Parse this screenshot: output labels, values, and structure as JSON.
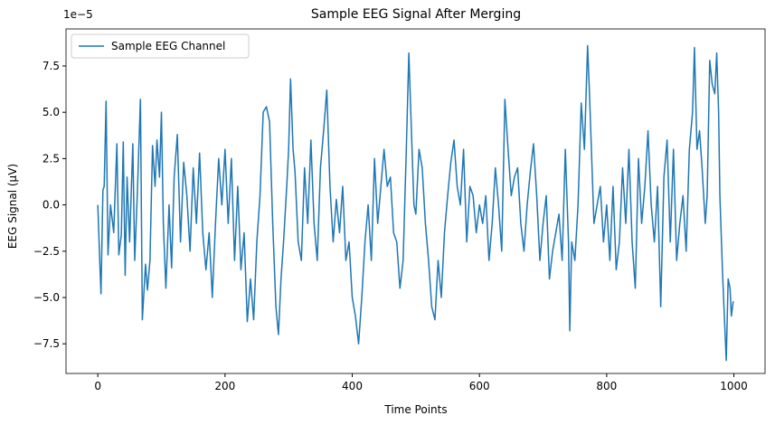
{
  "chart_data": {
    "type": "line",
    "title": "Sample EEG Signal After Merging",
    "x_label": "Time Points",
    "y_label": "EEG Signal (µV)",
    "y_offset_label": "1e−5",
    "xlim": [
      -50,
      1049
    ],
    "ylim": [
      -9.1,
      9.5
    ],
    "xticks": [
      0,
      200,
      400,
      600,
      800,
      1000
    ],
    "yticks": [
      {
        "value": -7.5,
        "label": "−7.5"
      },
      {
        "value": -5,
        "label": "−5.0"
      },
      {
        "value": -2.5,
        "label": "−2.5"
      },
      {
        "value": 0,
        "label": "0.0"
      },
      {
        "value": 2.5,
        "label": "2.5"
      },
      {
        "value": 5,
        "label": "5.0"
      },
      {
        "value": 7.5,
        "label": "7.5"
      }
    ],
    "grid": false,
    "legend": "upper-left",
    "x": [
      0,
      3,
      5,
      8,
      10,
      13,
      16,
      20,
      25,
      30,
      33,
      37,
      40,
      43,
      46,
      50,
      55,
      58,
      62,
      67,
      70,
      75,
      78,
      82,
      86,
      90,
      93,
      97,
      100,
      103,
      107,
      112,
      116,
      120,
      125,
      130,
      135,
      140,
      145,
      150,
      155,
      160,
      165,
      170,
      175,
      180,
      185,
      190,
      195,
      200,
      205,
      210,
      215,
      220,
      225,
      230,
      235,
      240,
      245,
      250,
      255,
      260,
      265,
      270,
      275,
      280,
      284,
      288,
      292,
      297,
      300,
      303,
      307,
      310,
      315,
      320,
      325,
      330,
      335,
      340,
      345,
      350,
      355,
      360,
      365,
      370,
      375,
      380,
      385,
      390,
      395,
      400,
      405,
      410,
      415,
      420,
      425,
      430,
      435,
      440,
      445,
      450,
      455,
      460,
      465,
      470,
      475,
      480,
      485,
      489,
      493,
      497,
      500,
      505,
      510,
      515,
      520,
      525,
      530,
      535,
      540,
      545,
      550,
      555,
      560,
      565,
      570,
      575,
      580,
      585,
      590,
      595,
      600,
      605,
      610,
      615,
      620,
      625,
      630,
      635,
      640,
      645,
      650,
      655,
      660,
      665,
      670,
      675,
      680,
      685,
      690,
      695,
      700,
      705,
      710,
      715,
      720,
      725,
      730,
      735,
      740,
      742,
      745,
      750,
      755,
      760,
      765,
      770,
      773,
      776,
      780,
      785,
      790,
      795,
      800,
      805,
      810,
      815,
      820,
      825,
      830,
      835,
      840,
      845,
      850,
      855,
      860,
      865,
      870,
      875,
      880,
      885,
      890,
      895,
      900,
      905,
      910,
      915,
      920,
      925,
      930,
      935,
      938,
      942,
      946,
      950,
      955,
      958,
      962,
      966,
      970,
      973,
      976,
      978,
      982,
      985,
      988,
      991,
      994,
      996,
      999
    ],
    "series": [
      {
        "name": "Sample EEG Channel",
        "color": "#1f77b4",
        "values": [
          0,
          -3,
          -4.8,
          0.8,
          1,
          5.6,
          -2.7,
          0,
          -1.5,
          3.3,
          -2.7,
          -1.6,
          3.4,
          -3.8,
          1.5,
          -2,
          3.3,
          -3,
          0.5,
          5.7,
          -6.2,
          -3.2,
          -4.6,
          -3,
          3.2,
          1,
          3.5,
          1.5,
          5.0,
          -1,
          -4.5,
          0,
          -3.4,
          1.5,
          3.8,
          -2,
          2.3,
          0.5,
          -2.5,
          2,
          -1,
          2.8,
          -1.5,
          -3.5,
          -1.5,
          -5,
          -1,
          2.5,
          0,
          3,
          -1,
          2.5,
          -3,
          1,
          -3.5,
          -1.5,
          -6.3,
          -4,
          -6.2,
          -2,
          0.5,
          5,
          5.3,
          4.5,
          -1,
          -5.5,
          -7.0,
          -4,
          -2,
          1,
          3,
          6.8,
          3,
          1.8,
          -2,
          -3,
          2,
          -1,
          3.5,
          -1,
          -3,
          2,
          4,
          6.2,
          1,
          -2,
          0.3,
          -1.5,
          1,
          -3,
          -2,
          -5,
          -6,
          -7.5,
          -5,
          -2,
          0,
          -3,
          2.5,
          -1,
          1,
          3,
          1,
          1.5,
          -1.5,
          -2,
          -4.5,
          -3,
          3,
          8.2,
          4,
          0,
          -0.5,
          3,
          2,
          -1,
          -3,
          -5.5,
          -6.2,
          -3,
          -5,
          -1.5,
          0.5,
          2.3,
          3.5,
          1,
          0,
          3,
          -2,
          1,
          0.5,
          -1.5,
          0,
          -1,
          0.5,
          -3,
          -1,
          2,
          0,
          -2.5,
          5.7,
          3,
          0.5,
          1.5,
          2,
          -1,
          -2.5,
          0,
          1.8,
          3.3,
          0.5,
          -3,
          -1,
          0.5,
          -4,
          -2.5,
          -1.5,
          -0.5,
          -3,
          3,
          -2,
          -6.8,
          -2,
          -3,
          0,
          5.5,
          3,
          8.6,
          6,
          3,
          -1,
          0,
          1,
          -2,
          0,
          -3,
          1,
          -3.5,
          -2,
          2,
          -1,
          3,
          -2,
          -4.5,
          2.5,
          -1,
          1,
          4,
          0,
          -2,
          1,
          -5.5,
          1.5,
          3.5,
          -2,
          3,
          -3,
          -1,
          0.5,
          -2.5,
          3,
          5,
          8.5,
          3,
          4,
          2,
          -1,
          0.5,
          7.8,
          6.5,
          6,
          8.2,
          5,
          0.5,
          -3.5,
          -6,
          -8.4,
          -4,
          -4.5,
          -6,
          -5.2
        ]
      }
    ]
  }
}
